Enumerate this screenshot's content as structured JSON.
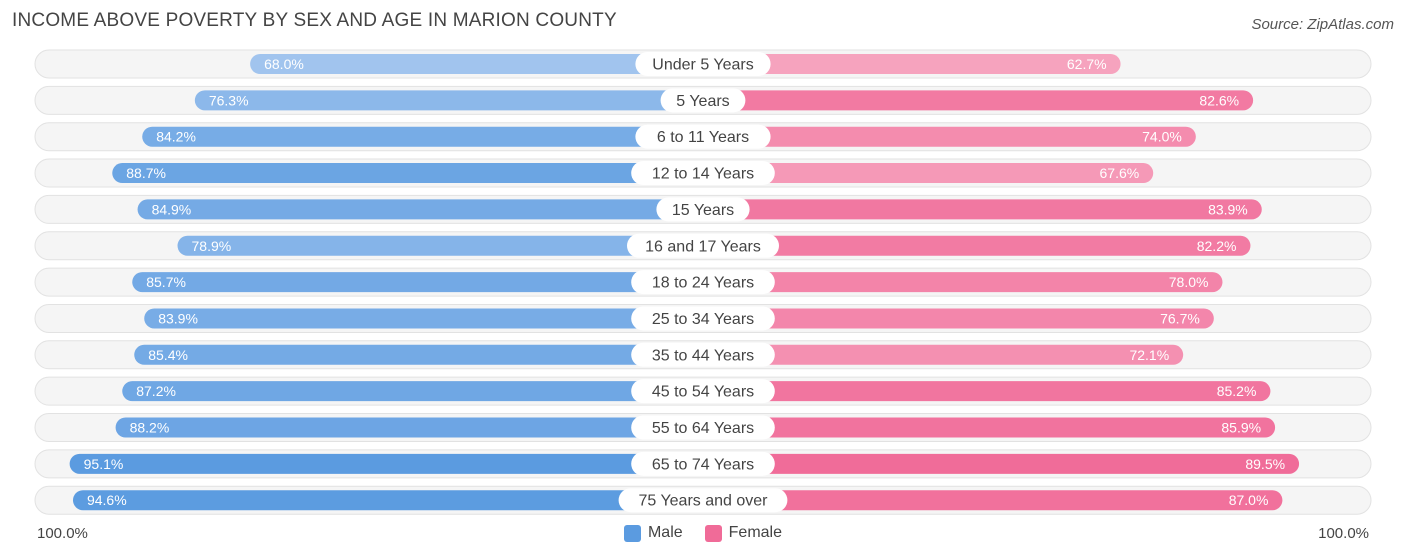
{
  "title": "INCOME ABOVE POVERTY BY SEX AND AGE IN MARION COUNTY",
  "source": "Source: ZipAtlas.com",
  "axis": {
    "left_label": "100.0%",
    "right_label": "100.0%"
  },
  "legend": {
    "male": "Male",
    "female": "Female"
  },
  "colors": {
    "male_strong": "#5b9be0",
    "male_light": "#a9c9f0",
    "female_strong": "#f06b98",
    "female_light": "#f7a9c2",
    "track": "#efefef"
  },
  "chart_data": {
    "type": "bar",
    "orientation": "horizontal-diverging",
    "title": "INCOME ABOVE POVERTY BY SEX AND AGE IN MARION COUNTY",
    "xlim": [
      0,
      100
    ],
    "categories": [
      "Under 5 Years",
      "5 Years",
      "6 to 11 Years",
      "12 to 14 Years",
      "15 Years",
      "16 and 17 Years",
      "18 to 24 Years",
      "25 to 34 Years",
      "35 to 44 Years",
      "45 to 54 Years",
      "55 to 64 Years",
      "65 to 74 Years",
      "75 Years and over"
    ],
    "series": [
      {
        "name": "Male",
        "values": [
          68.0,
          76.3,
          84.2,
          88.7,
          84.9,
          78.9,
          85.7,
          83.9,
          85.4,
          87.2,
          88.2,
          95.1,
          94.6
        ],
        "labels": [
          "68.0%",
          "76.3%",
          "84.2%",
          "88.7%",
          "84.9%",
          "78.9%",
          "85.7%",
          "83.9%",
          "85.4%",
          "87.2%",
          "88.2%",
          "95.1%",
          "94.6%"
        ]
      },
      {
        "name": "Female",
        "values": [
          62.7,
          82.6,
          74.0,
          67.6,
          83.9,
          82.2,
          78.0,
          76.7,
          72.1,
          85.2,
          85.9,
          89.5,
          87.0
        ],
        "labels": [
          "62.7%",
          "82.6%",
          "74.0%",
          "67.6%",
          "83.9%",
          "82.2%",
          "78.0%",
          "76.7%",
          "72.1%",
          "85.2%",
          "85.9%",
          "89.5%",
          "87.0%"
        ]
      }
    ]
  }
}
